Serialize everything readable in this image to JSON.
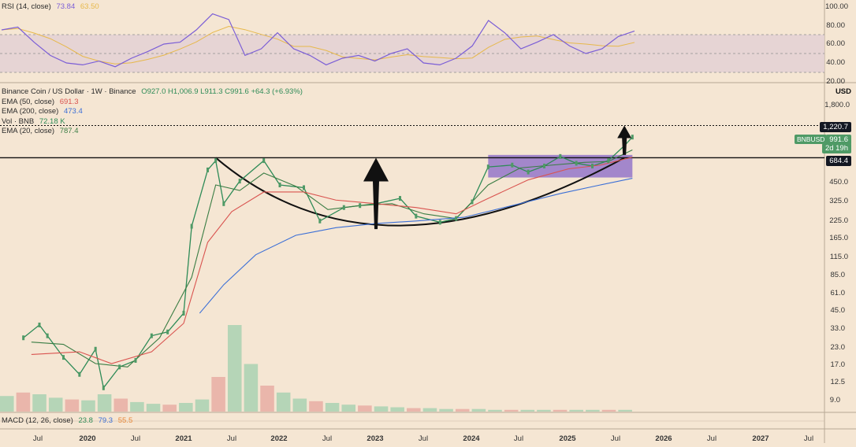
{
  "rsi_panel": {
    "title": "RSI (14, close)",
    "value_rsi": "73.84",
    "value_ma": "63.50",
    "rsi_color": "#7b5ed6",
    "ma_color": "#e7b84a",
    "axis": [
      "100.00",
      "80.00",
      "60.00",
      "40.00",
      "20.00"
    ]
  },
  "price_panel": {
    "title": "Binance Coin / US Dollar · 1W · Binance",
    "ohlc": "O927.0  H1,006.9  L911.3  C991.6  +64.3 (+6.93%)",
    "ohlc_color": "#2e8b57",
    "currency": "USD",
    "axis": [
      "1,800.0",
      "450.0",
      "325.0",
      "225.0",
      "165.0",
      "115.0",
      "85.0",
      "61.0",
      "45.0",
      "33.0",
      "23.0",
      "17.0",
      "12.5",
      "9.0"
    ],
    "emas": [
      {
        "label": "EMA (50, close)",
        "value": "691.3",
        "color": "#d9534f"
      },
      {
        "label": "EMA (200, close)",
        "value": "473.4",
        "color": "#3b6fd6"
      },
      {
        "label": "Vol · BNB",
        "value": "72.18 K",
        "color": "#2e8b57"
      },
      {
        "label": "EMA (20, close)",
        "value": "787.4",
        "color": "#3a7d44"
      }
    ],
    "price_tags": [
      {
        "text": "1,220.7",
        "bg": "#131722"
      },
      {
        "text": "991.6",
        "bg": "#4f9a66"
      },
      {
        "text": "2d 19h",
        "bg": "#4f9a66"
      },
      {
        "text": "684.4",
        "bg": "#131722"
      }
    ],
    "symbol_tag": "BNBUSD"
  },
  "macd_panel": {
    "title": "MACD (12, 26, close)",
    "v1": "23.8",
    "v2": "79.3",
    "v3": "55.5",
    "c1": "#2e8b57",
    "c2": "#3b6fd6",
    "c3": "#e8883a"
  },
  "time_axis": [
    {
      "label": "Jul",
      "year": false
    },
    {
      "label": "2020",
      "year": true
    },
    {
      "label": "Jul",
      "year": false
    },
    {
      "label": "2021",
      "year": true
    },
    {
      "label": "Jul",
      "year": false
    },
    {
      "label": "2022",
      "year": true
    },
    {
      "label": "Jul",
      "year": false
    },
    {
      "label": "2023",
      "year": true
    },
    {
      "label": "Jul",
      "year": false
    },
    {
      "label": "2024",
      "year": true
    },
    {
      "label": "Jul",
      "year": false
    },
    {
      "label": "2025",
      "year": true
    },
    {
      "label": "Jul",
      "year": false
    },
    {
      "label": "2026",
      "year": true
    },
    {
      "label": "Jul",
      "year": false
    },
    {
      "label": "2027",
      "year": true
    },
    {
      "label": "Jul",
      "year": false
    }
  ],
  "chart_data": {
    "type": "line",
    "title": "Binance Coin / US Dollar · 1W · Binance",
    "scale": "log",
    "ylim": [
      7.5,
      2000
    ],
    "annotations": {
      "horizontal_levels": [
        684.4,
        1220.7
      ],
      "consolidation_box": {
        "from": "2024-03",
        "to": "2025-09",
        "low": 480,
        "high": 720,
        "color": "#8e6fc9"
      },
      "cup_pattern": {
        "left_rim": "2021-05",
        "bottom": "2023-01",
        "right_rim": "2025-08",
        "bottom_price": 190
      },
      "arrows": [
        {
          "x": "2023-01",
          "from": 190,
          "to": 684.4
        },
        {
          "x": "2025-08",
          "from": 720,
          "to": 1220.7
        }
      ]
    },
    "series": [
      {
        "name": "BNBUSD",
        "color": "#2e8b57",
        "points": [
          [
            "2019-05",
            27
          ],
          [
            "2019-07",
            34
          ],
          [
            "2019-08",
            28
          ],
          [
            "2019-10",
            19
          ],
          [
            "2019-12",
            14
          ],
          [
            "2020-02",
            22
          ],
          [
            "2020-03",
            11
          ],
          [
            "2020-05",
            16
          ],
          [
            "2020-07",
            18
          ],
          [
            "2020-09",
            28
          ],
          [
            "2020-11",
            30
          ],
          [
            "2021-01",
            42
          ],
          [
            "2021-02",
            200
          ],
          [
            "2021-04",
            550
          ],
          [
            "2021-05",
            650
          ],
          [
            "2021-06",
            300
          ],
          [
            "2021-08",
            450
          ],
          [
            "2021-11",
            650
          ],
          [
            "2022-01",
            420
          ],
          [
            "2022-04",
            400
          ],
          [
            "2022-06",
            220
          ],
          [
            "2022-09",
            280
          ],
          [
            "2022-11",
            290
          ],
          [
            "2023-01",
            300
          ],
          [
            "2023-04",
            330
          ],
          [
            "2023-06",
            240
          ],
          [
            "2023-09",
            215
          ],
          [
            "2023-11",
            230
          ],
          [
            "2024-01",
            310
          ],
          [
            "2024-03",
            580
          ],
          [
            "2024-06",
            600
          ],
          [
            "2024-08",
            530
          ],
          [
            "2024-10",
            590
          ],
          [
            "2024-12",
            700
          ],
          [
            "2025-02",
            620
          ],
          [
            "2025-04",
            590
          ],
          [
            "2025-06",
            650
          ],
          [
            "2025-08",
            850
          ],
          [
            "2025-09",
            991.6
          ]
        ]
      },
      {
        "name": "EMA (20, close)",
        "color": "#3a7d44",
        "points": [
          [
            "2019-06",
            25
          ],
          [
            "2019-10",
            24
          ],
          [
            "2020-02",
            17
          ],
          [
            "2020-06",
            16
          ],
          [
            "2020-10",
            27
          ],
          [
            "2021-02",
            80
          ],
          [
            "2021-05",
            420
          ],
          [
            "2021-08",
            380
          ],
          [
            "2021-11",
            520
          ],
          [
            "2022-03",
            410
          ],
          [
            "2022-07",
            270
          ],
          [
            "2022-11",
            290
          ],
          [
            "2023-03",
            300
          ],
          [
            "2023-07",
            250
          ],
          [
            "2023-11",
            230
          ],
          [
            "2024-03",
            420
          ],
          [
            "2024-07",
            570
          ],
          [
            "2024-11",
            600
          ],
          [
            "2025-03",
            630
          ],
          [
            "2025-06",
            640
          ],
          [
            "2025-09",
            787.4
          ]
        ]
      },
      {
        "name": "EMA (50, close)",
        "color": "#d9534f",
        "points": [
          [
            "2019-06",
            20
          ],
          [
            "2019-12",
            21
          ],
          [
            "2020-04",
            17
          ],
          [
            "2020-09",
            21
          ],
          [
            "2021-01",
            35
          ],
          [
            "2021-04",
            150
          ],
          [
            "2021-07",
            260
          ],
          [
            "2021-11",
            370
          ],
          [
            "2022-04",
            370
          ],
          [
            "2022-08",
            320
          ],
          [
            "2023-01",
            300
          ],
          [
            "2023-06",
            280
          ],
          [
            "2023-11",
            250
          ],
          [
            "2024-03",
            330
          ],
          [
            "2024-08",
            460
          ],
          [
            "2025-01",
            560
          ],
          [
            "2025-05",
            600
          ],
          [
            "2025-09",
            691.3
          ]
        ]
      },
      {
        "name": "EMA (200, close)",
        "color": "#3b6fd6",
        "points": [
          [
            "2021-03",
            42
          ],
          [
            "2021-06",
            70
          ],
          [
            "2021-10",
            120
          ],
          [
            "2022-03",
            170
          ],
          [
            "2022-08",
            195
          ],
          [
            "2023-01",
            210
          ],
          [
            "2023-06",
            220
          ],
          [
            "2023-12",
            235
          ],
          [
            "2024-06",
            290
          ],
          [
            "2024-12",
            360
          ],
          [
            "2025-05",
            420
          ],
          [
            "2025-09",
            473.4
          ]
        ]
      }
    ],
    "volume": {
      "name": "Vol · BNB",
      "latest": "72.18 K",
      "relative": [
        0.18,
        0.22,
        0.2,
        0.16,
        0.14,
        0.13,
        0.2,
        0.15,
        0.11,
        0.09,
        0.08,
        0.1,
        0.14,
        0.4,
        1.0,
        0.55,
        0.3,
        0.22,
        0.15,
        0.12,
        0.1,
        0.08,
        0.07,
        0.06,
        0.05,
        0.04,
        0.04,
        0.03,
        0.03,
        0.03,
        0.02,
        0.02,
        0.02,
        0.02,
        0.02,
        0.02,
        0.02,
        0.02,
        0.02
      ]
    },
    "rsi": {
      "name": "RSI (14, close)",
      "ylim": [
        20,
        100
      ],
      "bands": [
        30,
        50,
        70
      ],
      "values": [
        75,
        78,
        62,
        48,
        40,
        38,
        42,
        36,
        45,
        52,
        60,
        62,
        75,
        92,
        86,
        48,
        55,
        72,
        55,
        48,
        38,
        45,
        48,
        42,
        50,
        55,
        40,
        38,
        45,
        58,
        85,
        72,
        55,
        62,
        70,
        58,
        50,
        55,
        68,
        73.84
      ]
    },
    "macd": {
      "name": "MACD (12, 26, close)",
      "macd": 23.8,
      "signal": 79.3,
      "histogram": 55.5
    }
  }
}
